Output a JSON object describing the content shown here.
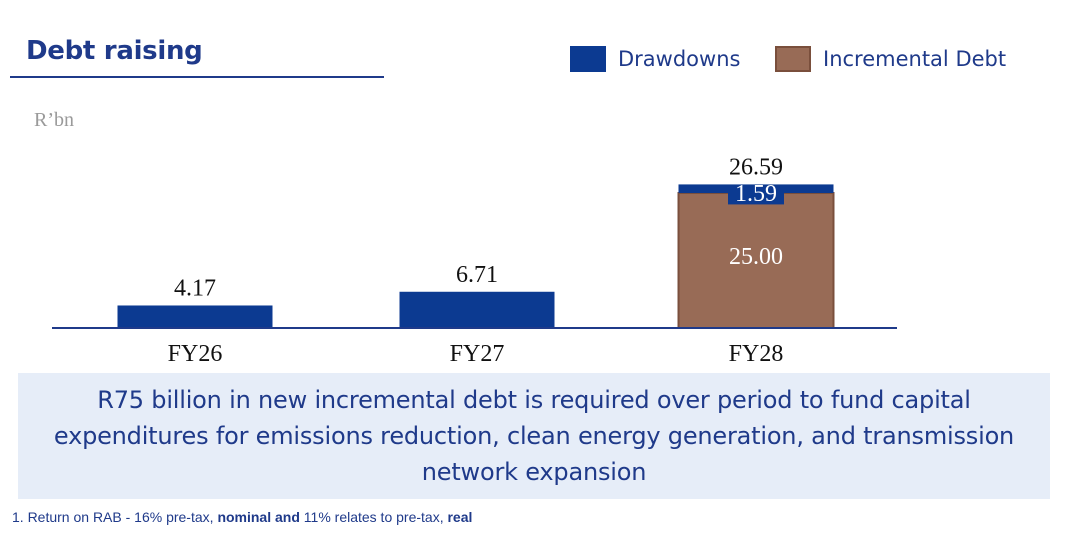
{
  "chart_data": {
    "type": "bar",
    "stacked": true,
    "title": "Debt raising",
    "ylabel": "R'bn",
    "ylabel_display": "R’bn",
    "xlabel": "",
    "categories": [
      "FY26",
      "FY27",
      "FY28"
    ],
    "series": [
      {
        "name": "Drawdowns",
        "values": [
          4.17,
          6.71,
          1.59
        ],
        "labels": [
          "",
          "",
          "1.59"
        ],
        "color": "#0c3a91"
      },
      {
        "name": "Incremental Debt",
        "values": [
          0,
          0,
          25.0
        ],
        "labels": [
          "",
          "",
          "25.00"
        ],
        "color": "#986b56"
      }
    ],
    "totals": [
      4.17,
      6.71,
      26.59
    ],
    "total_labels": [
      "4.17",
      "6.71",
      "26.59"
    ],
    "ylim": [
      0,
      30
    ],
    "grid": false,
    "legend": "top-right"
  },
  "callout": {
    "text": "R75 billion in new incremental debt is required over period to fund capital expenditures for emissions reduction, clean energy generation, and transmission network expansion"
  },
  "footnote": {
    "part1": "1. Return on RAB - 16% pre-tax, ",
    "bold1": "nominal and",
    "part2": " 11% relates to pre-tax, ",
    "bold2": "real"
  },
  "colors": {
    "accent": "#1f3a8a",
    "drawdowns": "#0c3a91",
    "incremental": "#986b56",
    "callout_bg": "#e6edf8"
  }
}
